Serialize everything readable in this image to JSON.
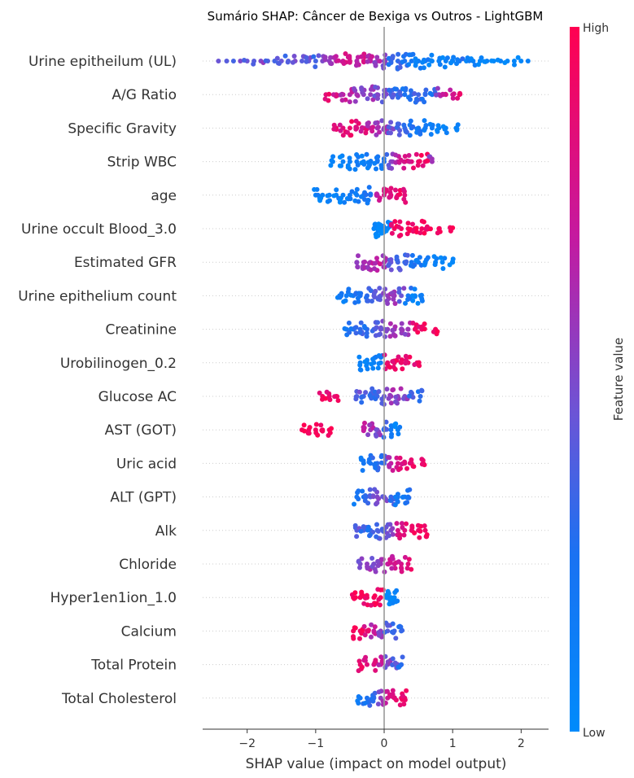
{
  "chart_data": {
    "type": "scatter",
    "subtype": "shap-beeswarm",
    "title": "Sumário SHAP: Câncer de Bexiga vs Outros - LightGBM",
    "xlabel": "SHAP value (impact on model output)",
    "xlim": [
      -2.65,
      2.4
    ],
    "xticks": [
      -2,
      -1,
      0,
      1,
      2
    ],
    "xtick_labels": [
      "−2",
      "−1",
      "0",
      "1",
      "2"
    ],
    "colorbar": {
      "label": "Feature value",
      "high": "High",
      "low": "Low",
      "high_color": "#ff0051",
      "low_color": "#008bfb"
    },
    "features": [
      {
        "name": "Urine epitheilum (UL)",
        "points": [
          [
            -2.42,
            0.45
          ],
          [
            -2.3,
            0.4
          ],
          [
            -2.2,
            0.35
          ],
          [
            -2.1,
            0.5
          ],
          [
            -2.0,
            0.45
          ],
          [
            -1.9,
            0.4
          ],
          [
            -1.8,
            0.5
          ],
          [
            -1.7,
            0.4
          ],
          [
            -1.6,
            0.35
          ],
          [
            -1.5,
            0.45
          ],
          [
            -1.4,
            0.4
          ],
          [
            -1.3,
            0.5
          ],
          [
            -1.2,
            0.4
          ],
          [
            -1.1,
            0.45
          ],
          [
            -1.0,
            0.35
          ],
          [
            -0.9,
            0.5
          ],
          [
            -0.8,
            0.55
          ],
          [
            -0.7,
            0.7
          ],
          [
            -0.6,
            0.75
          ],
          [
            -0.5,
            0.8
          ],
          [
            -0.4,
            0.65
          ],
          [
            -0.3,
            0.8
          ],
          [
            -0.2,
            0.7
          ],
          [
            -0.1,
            0.6
          ],
          [
            0.0,
            0.5
          ],
          [
            0.1,
            0.3
          ],
          [
            0.2,
            0.3
          ],
          [
            0.3,
            0.25
          ],
          [
            0.4,
            0.2
          ],
          [
            0.5,
            0.15
          ],
          [
            0.6,
            0.15
          ],
          [
            0.7,
            0.1
          ],
          [
            0.8,
            0.1
          ],
          [
            0.9,
            0.1
          ],
          [
            1.0,
            0.1
          ],
          [
            1.1,
            0.2
          ],
          [
            1.2,
            0.05
          ],
          [
            1.3,
            0.1
          ],
          [
            1.4,
            0.05
          ],
          [
            1.5,
            0.1
          ],
          [
            1.6,
            0.05
          ],
          [
            1.7,
            0.1
          ],
          [
            1.8,
            0.05
          ],
          [
            1.9,
            0.05
          ],
          [
            2.0,
            0.05
          ],
          [
            2.1,
            0.1
          ]
        ]
      },
      {
        "name": "A/G Ratio",
        "points": [
          [
            -0.85,
            0.85
          ],
          [
            -0.7,
            0.8
          ],
          [
            -0.6,
            0.7
          ],
          [
            -0.5,
            0.65
          ],
          [
            -0.4,
            0.6
          ],
          [
            -0.3,
            0.55
          ],
          [
            -0.2,
            0.55
          ],
          [
            -0.1,
            0.5
          ],
          [
            0.0,
            0.45
          ],
          [
            0.1,
            0.35
          ],
          [
            0.2,
            0.3
          ],
          [
            0.3,
            0.25
          ],
          [
            0.4,
            0.3
          ],
          [
            0.5,
            0.35
          ],
          [
            0.6,
            0.3
          ],
          [
            0.7,
            0.25
          ],
          [
            0.8,
            0.6
          ],
          [
            0.9,
            0.8
          ],
          [
            1.0,
            0.75
          ],
          [
            1.1,
            0.9
          ]
        ]
      },
      {
        "name": "Specific Gravity",
        "points": [
          [
            -0.7,
            0.9
          ],
          [
            -0.6,
            0.85
          ],
          [
            -0.5,
            0.9
          ],
          [
            -0.4,
            0.85
          ],
          [
            -0.3,
            0.8
          ],
          [
            -0.2,
            0.7
          ],
          [
            -0.1,
            0.6
          ],
          [
            0.0,
            0.55
          ],
          [
            0.1,
            0.45
          ],
          [
            0.2,
            0.35
          ],
          [
            0.3,
            0.3
          ],
          [
            0.4,
            0.25
          ],
          [
            0.5,
            0.2
          ],
          [
            0.6,
            0.15
          ],
          [
            0.7,
            0.15
          ],
          [
            0.8,
            0.1
          ],
          [
            0.9,
            0.1
          ],
          [
            1.05,
            0.05
          ]
        ]
      },
      {
        "name": "Strip WBC",
        "points": [
          [
            -0.75,
            0.1
          ],
          [
            -0.6,
            0.1
          ],
          [
            -0.5,
            0.12
          ],
          [
            -0.4,
            0.15
          ],
          [
            -0.3,
            0.12
          ],
          [
            -0.2,
            0.15
          ],
          [
            -0.1,
            0.2
          ],
          [
            0.0,
            0.25
          ],
          [
            0.1,
            0.5
          ],
          [
            0.2,
            0.7
          ],
          [
            0.3,
            0.8
          ],
          [
            0.4,
            0.85
          ],
          [
            0.5,
            0.9
          ],
          [
            0.6,
            0.9
          ],
          [
            0.7,
            0.6
          ]
        ]
      },
      {
        "name": "age",
        "points": [
          [
            -1.0,
            0.1
          ],
          [
            -0.9,
            0.1
          ],
          [
            -0.8,
            0.12
          ],
          [
            -0.7,
            0.1
          ],
          [
            -0.6,
            0.12
          ],
          [
            -0.5,
            0.15
          ],
          [
            -0.4,
            0.15
          ],
          [
            -0.3,
            0.2
          ],
          [
            -0.2,
            0.25
          ],
          [
            -0.1,
            0.7
          ],
          [
            0.0,
            0.8
          ],
          [
            0.1,
            0.85
          ],
          [
            0.2,
            0.9
          ],
          [
            0.3,
            0.85
          ]
        ]
      },
      {
        "name": "Urine occult Blood_3.0",
        "points": [
          [
            -0.15,
            0.05
          ],
          [
            -0.1,
            0.05
          ],
          [
            -0.05,
            0.05
          ],
          [
            0.0,
            0.05
          ],
          [
            0.05,
            0.05
          ],
          [
            0.15,
            0.95
          ],
          [
            0.25,
            0.95
          ],
          [
            0.35,
            0.95
          ],
          [
            0.45,
            0.95
          ],
          [
            0.55,
            0.95
          ],
          [
            0.65,
            0.95
          ],
          [
            0.8,
            0.95
          ],
          [
            0.97,
            0.95
          ]
        ]
      },
      {
        "name": "Estimated GFR",
        "points": [
          [
            -0.4,
            0.55
          ],
          [
            -0.3,
            0.6
          ],
          [
            -0.2,
            0.65
          ],
          [
            -0.1,
            0.7
          ],
          [
            0.0,
            0.6
          ],
          [
            0.1,
            0.45
          ],
          [
            0.2,
            0.35
          ],
          [
            0.3,
            0.3
          ],
          [
            0.4,
            0.2
          ],
          [
            0.5,
            0.15
          ],
          [
            0.6,
            0.1
          ],
          [
            0.75,
            0.1
          ],
          [
            0.85,
            0.05
          ],
          [
            1.0,
            0.05
          ]
        ]
      },
      {
        "name": "Urine epithelium count",
        "points": [
          [
            -0.65,
            0.15
          ],
          [
            -0.55,
            0.15
          ],
          [
            -0.45,
            0.2
          ],
          [
            -0.35,
            0.25
          ],
          [
            -0.25,
            0.3
          ],
          [
            -0.15,
            0.4
          ],
          [
            -0.05,
            0.45
          ],
          [
            0.05,
            0.55
          ],
          [
            0.15,
            0.6
          ],
          [
            0.25,
            0.45
          ],
          [
            0.35,
            0.2
          ],
          [
            0.45,
            0.1
          ],
          [
            0.53,
            0.1
          ]
        ]
      },
      {
        "name": "Creatinine",
        "points": [
          [
            -0.55,
            0.2
          ],
          [
            -0.45,
            0.25
          ],
          [
            -0.35,
            0.3
          ],
          [
            -0.25,
            0.3
          ],
          [
            -0.15,
            0.35
          ],
          [
            -0.05,
            0.45
          ],
          [
            0.05,
            0.55
          ],
          [
            0.15,
            0.6
          ],
          [
            0.25,
            0.55
          ],
          [
            0.35,
            0.6
          ],
          [
            0.45,
            0.9
          ],
          [
            0.55,
            0.9
          ],
          [
            0.75,
            0.95
          ]
        ]
      },
      {
        "name": "Urobilinogen_0.2",
        "points": [
          [
            -0.35,
            0.1
          ],
          [
            -0.25,
            0.1
          ],
          [
            -0.15,
            0.12
          ],
          [
            -0.05,
            0.15
          ],
          [
            0.05,
            0.9
          ],
          [
            0.15,
            0.9
          ],
          [
            0.25,
            0.92
          ],
          [
            0.35,
            0.92
          ],
          [
            0.48,
            0.9
          ]
        ]
      },
      {
        "name": "Glucose AC",
        "points": [
          [
            -0.9,
            0.95
          ],
          [
            -0.8,
            0.9
          ],
          [
            -0.7,
            0.9
          ],
          [
            -0.4,
            0.4
          ],
          [
            -0.3,
            0.35
          ],
          [
            -0.2,
            0.3
          ],
          [
            -0.1,
            0.35
          ],
          [
            0.0,
            0.45
          ],
          [
            0.1,
            0.6
          ],
          [
            0.2,
            0.55
          ],
          [
            0.3,
            0.5
          ],
          [
            0.4,
            0.35
          ],
          [
            0.53,
            0.3
          ]
        ]
      },
      {
        "name": "AST (GOT)",
        "points": [
          [
            -1.2,
            0.95
          ],
          [
            -1.1,
            0.95
          ],
          [
            -1.0,
            0.95
          ],
          [
            -0.9,
            0.95
          ],
          [
            -0.8,
            0.95
          ],
          [
            -0.3,
            0.7
          ],
          [
            -0.2,
            0.6
          ],
          [
            -0.1,
            0.5
          ],
          [
            0.0,
            0.3
          ],
          [
            0.1,
            0.15
          ],
          [
            0.2,
            0.1
          ]
        ]
      },
      {
        "name": "Uric acid",
        "points": [
          [
            -0.3,
            0.2
          ],
          [
            -0.2,
            0.25
          ],
          [
            -0.1,
            0.3
          ],
          [
            0.0,
            0.35
          ],
          [
            0.1,
            0.7
          ],
          [
            0.2,
            0.8
          ],
          [
            0.3,
            0.85
          ],
          [
            0.4,
            0.9
          ],
          [
            0.57,
            0.92
          ]
        ]
      },
      {
        "name": "ALT (GPT)",
        "points": [
          [
            -0.4,
            0.2
          ],
          [
            -0.3,
            0.25
          ],
          [
            -0.2,
            0.4
          ],
          [
            -0.1,
            0.5
          ],
          [
            0.0,
            0.45
          ],
          [
            0.1,
            0.3
          ],
          [
            0.2,
            0.2
          ],
          [
            0.3,
            0.2
          ],
          [
            0.35,
            0.25
          ]
        ]
      },
      {
        "name": "Alk",
        "points": [
          [
            -0.4,
            0.4
          ],
          [
            -0.3,
            0.35
          ],
          [
            -0.2,
            0.3
          ],
          [
            -0.1,
            0.35
          ],
          [
            0.0,
            0.4
          ],
          [
            0.1,
            0.5
          ],
          [
            0.2,
            0.8
          ],
          [
            0.3,
            0.85
          ],
          [
            0.4,
            0.9
          ],
          [
            0.5,
            0.9
          ],
          [
            0.6,
            0.92
          ]
        ]
      },
      {
        "name": "Chloride",
        "points": [
          [
            -0.35,
            0.5
          ],
          [
            -0.25,
            0.55
          ],
          [
            -0.15,
            0.5
          ],
          [
            -0.05,
            0.6
          ],
          [
            0.05,
            0.7
          ],
          [
            0.15,
            0.75
          ],
          [
            0.25,
            0.8
          ],
          [
            0.35,
            0.85
          ]
        ]
      },
      {
        "name": "Hyper1en1ion_1.0",
        "points": [
          [
            -0.45,
            0.95
          ],
          [
            -0.35,
            0.95
          ],
          [
            -0.25,
            0.95
          ],
          [
            -0.15,
            0.95
          ],
          [
            -0.05,
            0.95
          ],
          [
            0.05,
            0.05
          ],
          [
            0.1,
            0.05
          ],
          [
            0.15,
            0.05
          ]
        ]
      },
      {
        "name": "Calcium",
        "points": [
          [
            -0.45,
            0.95
          ],
          [
            -0.35,
            0.92
          ],
          [
            -0.25,
            0.85
          ],
          [
            -0.15,
            0.7
          ],
          [
            -0.05,
            0.55
          ],
          [
            0.05,
            0.4
          ],
          [
            0.15,
            0.35
          ],
          [
            0.25,
            0.3
          ]
        ]
      },
      {
        "name": "Total Protein",
        "points": [
          [
            -0.35,
            0.9
          ],
          [
            -0.25,
            0.85
          ],
          [
            -0.15,
            0.8
          ],
          [
            -0.05,
            0.7
          ],
          [
            0.05,
            0.5
          ],
          [
            0.15,
            0.4
          ],
          [
            0.25,
            0.3
          ]
        ]
      },
      {
        "name": "Total Cholesterol",
        "points": [
          [
            -0.35,
            0.2
          ],
          [
            -0.25,
            0.25
          ],
          [
            -0.15,
            0.3
          ],
          [
            -0.05,
            0.55
          ],
          [
            0.05,
            0.75
          ],
          [
            0.15,
            0.85
          ],
          [
            0.25,
            0.9
          ],
          [
            0.3,
            0.9
          ]
        ]
      }
    ]
  }
}
